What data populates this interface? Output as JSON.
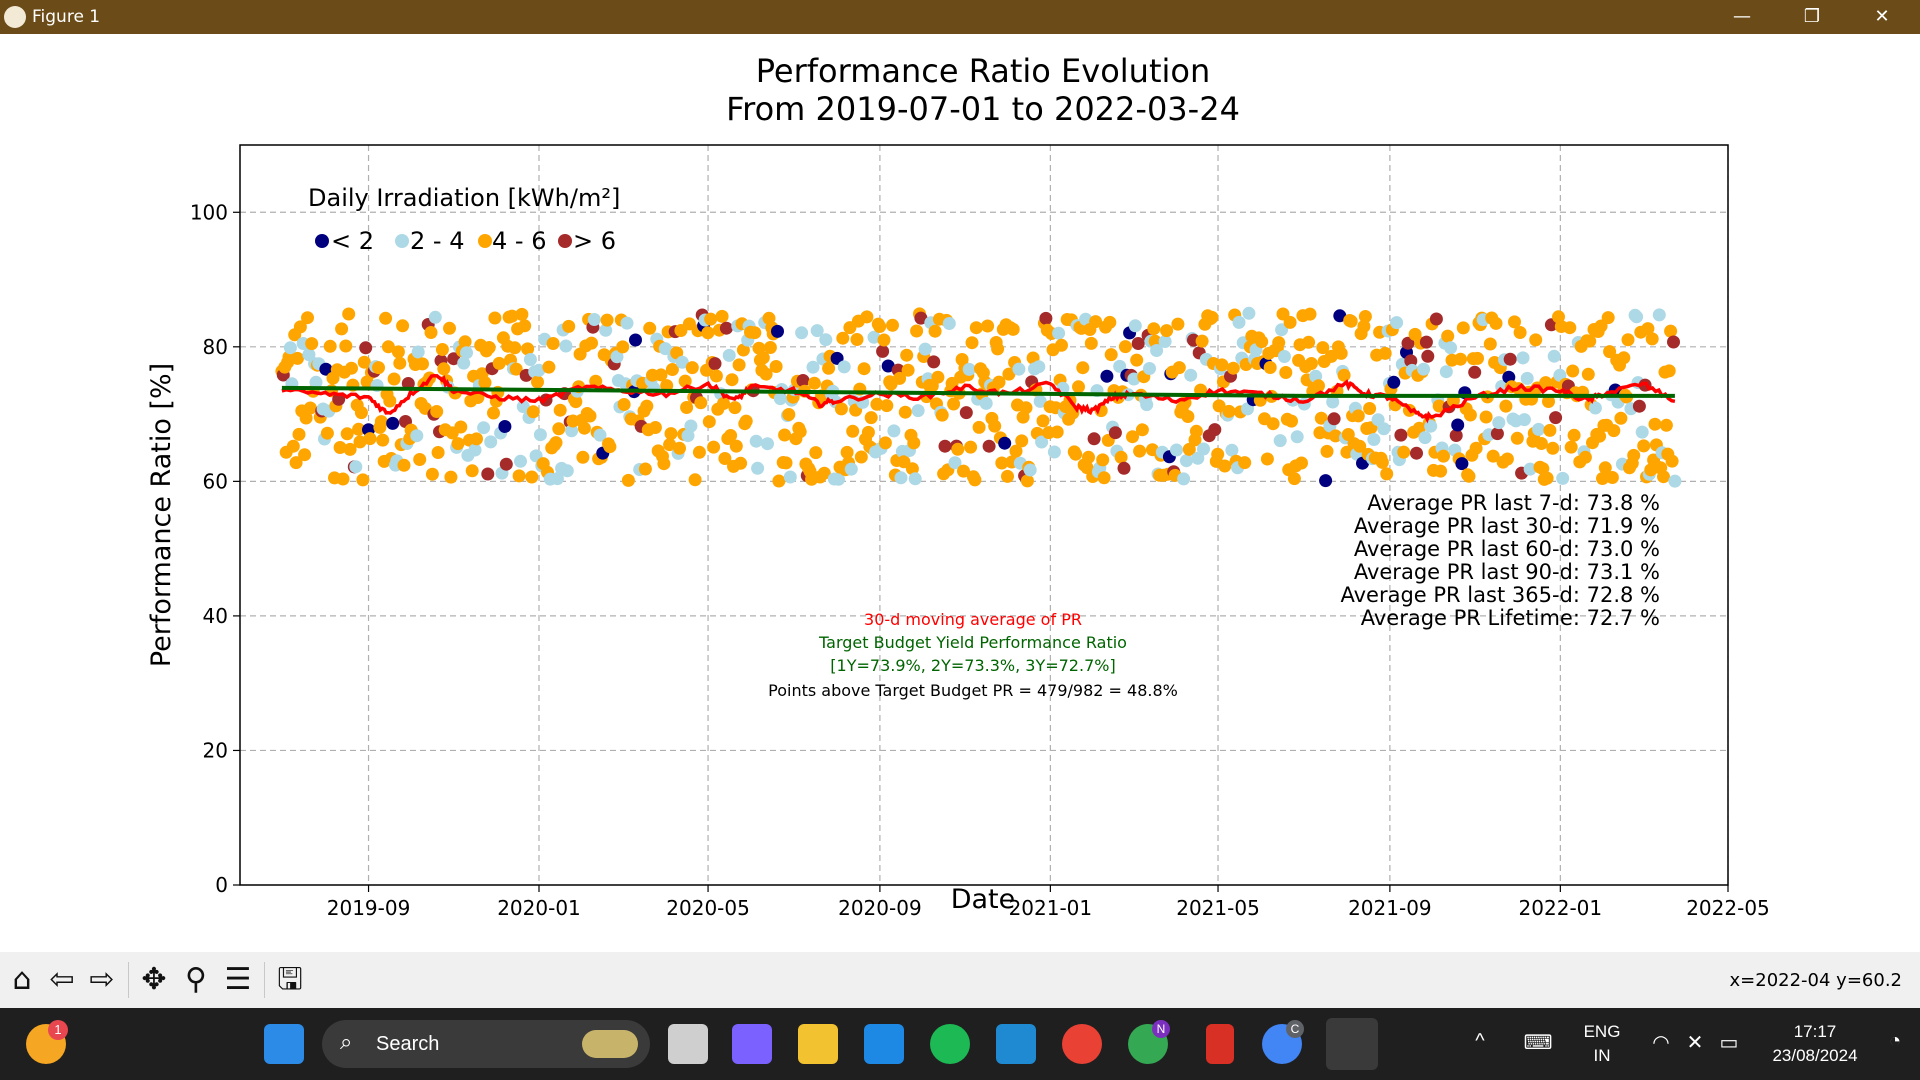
{
  "window": {
    "title": "Figure 1",
    "minimize": "—",
    "maximize": "❐",
    "close": "✕"
  },
  "chart_data": {
    "type": "scatter",
    "title": "Performance Ratio Evolution",
    "subtitle": "From 2019-07-01 to 2022-03-24",
    "xlabel": "Date",
    "ylabel": "Performance Ratio [%]",
    "xlim": [
      "2019-06-01",
      "2022-05-01"
    ],
    "ylim": [
      0,
      110
    ],
    "x_ticks": [
      "2019-09",
      "2020-01",
      "2020-05",
      "2020-09",
      "2021-01",
      "2021-05",
      "2021-09",
      "2022-01",
      "2022-05"
    ],
    "y_ticks": [
      0,
      20,
      40,
      60,
      80,
      100
    ],
    "grid": true,
    "legend": {
      "title": "Daily Irradiation [kWh/m²]",
      "placement": "top-left",
      "entries": [
        {
          "label": "< 2",
          "color": "#00007f"
        },
        {
          "label": "2 - 4",
          "color": "#add8e6"
        },
        {
          "label": "4 - 6",
          "color": "#ffa500"
        },
        {
          "label": "> 6",
          "color": "#a52a2a"
        }
      ]
    },
    "scatter": {
      "start": "2019-07-01",
      "end": "2022-03-24",
      "point_count": 982,
      "y_range": [
        60,
        85
      ],
      "category_colors": {
        "< 2": "#00007f",
        "2 - 4": "#add8e6",
        "4 - 6": "#ffa500",
        "> 6": "#a52a2a"
      },
      "category_share": {
        "< 2": 0.02,
        "2 - 4": 0.25,
        "4 - 6": 0.64,
        "> 6": 0.09
      }
    },
    "series": [
      {
        "name": "30-d moving average of PR",
        "color": "#ff0000",
        "x": [
          "2019-07-01",
          "2019-08-01",
          "2019-09-01",
          "2019-09-15",
          "2019-10-01",
          "2019-10-20",
          "2019-11-01",
          "2019-12-01",
          "2020-01-01",
          "2020-02-01",
          "2020-03-01",
          "2020-04-01",
          "2020-05-01",
          "2020-05-20",
          "2020-06-01",
          "2020-07-01",
          "2020-07-20",
          "2020-08-01",
          "2020-09-01",
          "2020-10-01",
          "2020-11-01",
          "2020-12-01",
          "2021-01-01",
          "2021-01-20",
          "2021-02-01",
          "2021-02-15",
          "2021-03-01",
          "2021-04-01",
          "2021-05-01",
          "2021-06-01",
          "2021-07-01",
          "2021-08-01",
          "2021-08-15",
          "2021-09-01",
          "2021-09-20",
          "2021-10-01",
          "2021-11-01",
          "2021-12-01",
          "2022-01-01",
          "2022-01-20",
          "2022-02-01",
          "2022-03-01",
          "2022-03-24"
        ],
        "y": [
          73.5,
          73.0,
          72.5,
          70.0,
          73.0,
          76.0,
          73.5,
          72.5,
          72.0,
          74.0,
          73.5,
          73.0,
          74.5,
          72.0,
          74.0,
          73.5,
          71.5,
          72.0,
          73.0,
          72.5,
          74.0,
          73.0,
          74.5,
          71.0,
          70.5,
          72.5,
          73.0,
          72.0,
          73.5,
          73.0,
          72.0,
          74.5,
          73.0,
          72.5,
          70.0,
          69.5,
          72.5,
          74.0,
          73.5,
          72.0,
          73.0,
          74.5,
          71.9
        ]
      },
      {
        "name": "Target Budget Yield Performance Ratio [1Y=73.9%, 2Y=73.3%, 3Y=72.7%]",
        "color": "#006400",
        "x": [
          "2019-07-01",
          "2020-07-01",
          "2021-07-01",
          "2022-03-24"
        ],
        "y": [
          73.9,
          73.3,
          72.7,
          72.7
        ]
      }
    ],
    "annotations": {
      "ma_label": "30-d moving average of PR",
      "target_label_1": "Target Budget Yield Performance Ratio",
      "target_label_2": "[1Y=73.9%, 2Y=73.3%, 3Y=72.7%]",
      "points_above": "Points above Target Budget PR = 479/982 = 48.8%",
      "averages": [
        "Average PR last 7-d: 73.8 %",
        "Average PR last 30-d: 71.9 %",
        "Average PR last 60-d: 73.0 %",
        "Average PR last 90-d: 73.1 %",
        "Average PR last 365-d: 72.8 %",
        "Average PR Lifetime: 72.7 %"
      ]
    }
  },
  "toolbar": {
    "coords": "x=2022-04 y=60.2",
    "icons": [
      "home-icon",
      "back-icon",
      "forward-icon",
      "pan-icon",
      "zoom-icon",
      "configure-icon",
      "save-icon"
    ]
  },
  "taskbar": {
    "search_placeholder": "Search",
    "notification_count": "1",
    "lang": "ENG",
    "region": "IN",
    "time": "17:17",
    "date": "23/08/2024",
    "chrome_badge_1": "N",
    "chrome_badge_2": "C"
  }
}
